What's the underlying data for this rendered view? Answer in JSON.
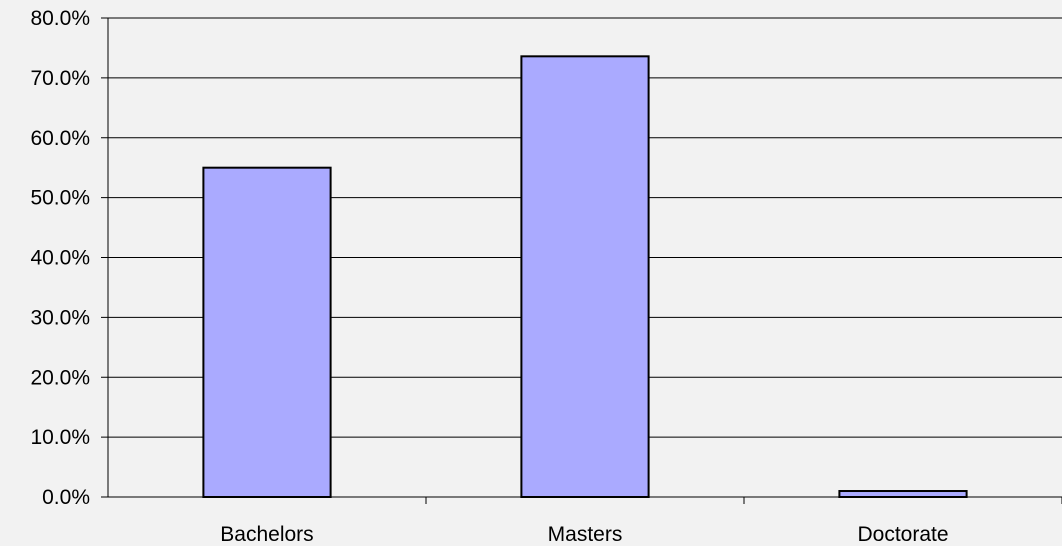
{
  "chart_data": {
    "type": "bar",
    "title": "",
    "xlabel": "",
    "ylabel": "",
    "categories": [
      "Bachelors",
      "Masters",
      "Doctorate"
    ],
    "values": [
      55.0,
      73.6,
      1.0
    ],
    "ylim": [
      0,
      80
    ],
    "yticks": [
      0,
      10,
      20,
      30,
      40,
      50,
      60,
      70,
      80
    ],
    "ytick_labels": [
      "0.0%",
      "10.0%",
      "20.0%",
      "30.0%",
      "40.0%",
      "50.0%",
      "60.0%",
      "70.0%",
      "80.0%"
    ],
    "grid": true,
    "legend": "none",
    "colors": {
      "bar_fill": "#aaaaff",
      "bar_stroke": "#000000",
      "gridline": "#000000",
      "background": "#f2f2f2"
    }
  }
}
